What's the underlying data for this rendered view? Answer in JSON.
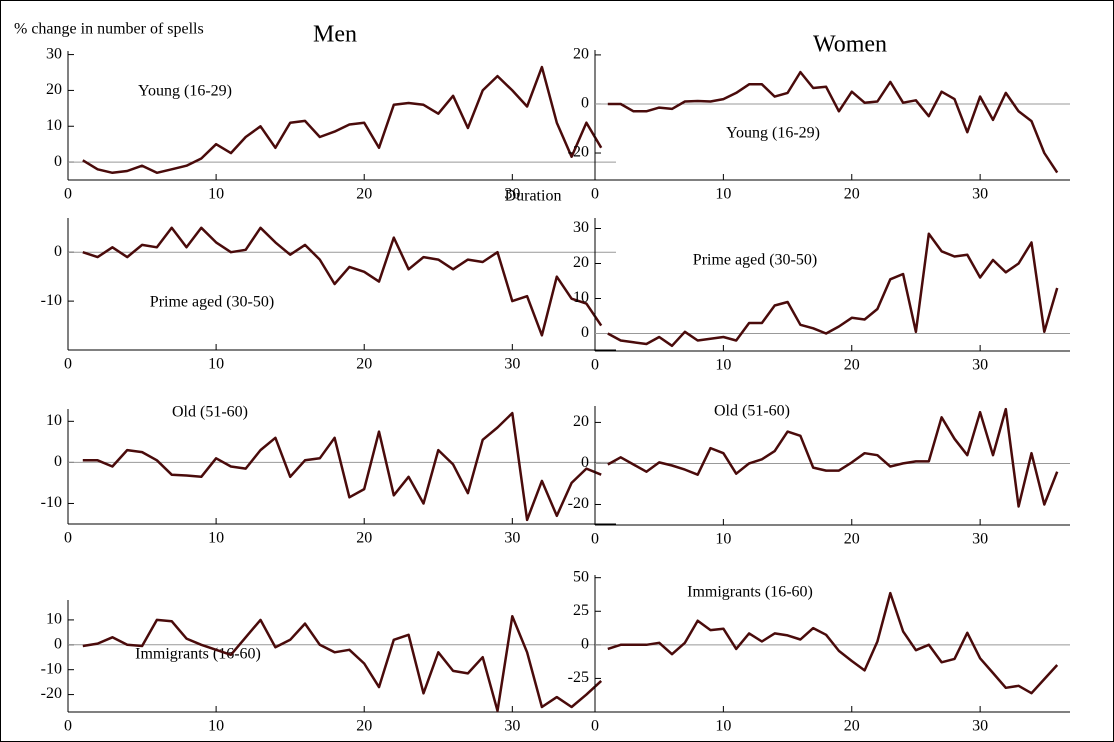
{
  "y_label": "% change in number of spells",
  "x_label": "Duration",
  "column_titles": [
    "Men",
    "Women"
  ],
  "chart_data": [
    {
      "type": "line",
      "annotation": "Young (16-29)",
      "color": "#4a0b0b",
      "zero_line": true,
      "x": [
        1,
        2,
        3,
        4,
        5,
        6,
        7,
        8,
        9,
        10,
        11,
        12,
        13,
        14,
        15,
        16,
        17,
        18,
        19,
        20,
        21,
        22,
        23,
        24,
        25,
        26,
        27,
        28,
        29,
        30,
        31,
        32,
        33,
        34,
        35,
        36
      ],
      "values": [
        0.5,
        -2,
        -3,
        -2.5,
        -1,
        -3,
        -2,
        -1,
        1,
        5,
        2.5,
        7,
        10,
        4,
        11,
        11.5,
        7,
        8.5,
        10.5,
        11,
        4,
        16,
        16.5,
        16,
        13.5,
        18.5,
        9.5,
        20,
        24,
        20,
        15.5,
        26.5,
        11,
        1.5,
        11,
        4
      ],
      "xlim": [
        0,
        37
      ],
      "xticks": [
        0,
        10,
        20,
        30
      ],
      "ylim": [
        -5,
        31
      ],
      "yticks": [
        0,
        10,
        20,
        30
      ]
    },
    {
      "type": "line",
      "annotation": "Prime aged (30-50)",
      "color": "#4a0b0b",
      "zero_line": true,
      "x": [
        1,
        2,
        3,
        4,
        5,
        6,
        7,
        8,
        9,
        10,
        11,
        12,
        13,
        14,
        15,
        16,
        17,
        18,
        19,
        20,
        21,
        22,
        23,
        24,
        25,
        26,
        27,
        28,
        29,
        30,
        31,
        32,
        33,
        34,
        35,
        36
      ],
      "values": [
        0,
        -1,
        1,
        -1,
        1.5,
        1,
        5,
        1,
        5,
        2,
        0,
        0.5,
        5,
        2,
        -0.5,
        1.5,
        -1.5,
        -6.5,
        -3,
        -4,
        -6,
        3,
        -3.5,
        -1,
        -1.5,
        -3.5,
        -1.5,
        -2,
        0,
        -10,
        -9,
        -17,
        -5,
        -9.5,
        -10.5,
        -15
      ],
      "xlim": [
        0,
        37
      ],
      "xticks": [
        0,
        10,
        20,
        30
      ],
      "ylim": [
        -20,
        7
      ],
      "yticks": [
        -10,
        0
      ]
    },
    {
      "type": "line",
      "annotation": "Old (51-60)",
      "color": "#4a0b0b",
      "zero_line": true,
      "x": [
        1,
        2,
        3,
        4,
        5,
        6,
        7,
        8,
        9,
        10,
        11,
        12,
        13,
        14,
        15,
        16,
        17,
        18,
        19,
        20,
        21,
        22,
        23,
        24,
        25,
        26,
        27,
        28,
        29,
        30,
        31,
        32,
        33,
        34,
        35,
        36
      ],
      "values": [
        0.5,
        0.5,
        -1,
        3,
        2.5,
        0.5,
        -3,
        -3.2,
        -3.5,
        1,
        -1,
        -1.5,
        3,
        6,
        -3.5,
        0.5,
        1,
        6,
        -8.5,
        -6.5,
        7.5,
        -8,
        -3.5,
        -10,
        3,
        -0.5,
        -7.5,
        5.5,
        8.5,
        12,
        -14,
        -4.5,
        -13,
        -5,
        -1.5,
        -3
      ],
      "xlim": [
        0,
        37
      ],
      "xticks": [
        0,
        10,
        20,
        30
      ],
      "ylim": [
        -15,
        13
      ],
      "yticks": [
        -10,
        0,
        10
      ]
    },
    {
      "type": "line",
      "annotation": "Immigrants (16-60)",
      "color": "#4a0b0b",
      "zero_line": true,
      "x": [
        1,
        2,
        3,
        4,
        5,
        6,
        7,
        8,
        9,
        10,
        11,
        12,
        13,
        14,
        15,
        16,
        17,
        18,
        19,
        20,
        21,
        22,
        23,
        24,
        25,
        26,
        27,
        28,
        29,
        30,
        31,
        32,
        33,
        34,
        35,
        36
      ],
      "values": [
        -0.5,
        0.5,
        3,
        0,
        -0.5,
        10,
        9.5,
        2.5,
        0,
        -2,
        -4,
        3,
        10,
        -1,
        2,
        8.5,
        0,
        -3,
        -2,
        -7.5,
        -17,
        2,
        4,
        -19.5,
        -3,
        -10.5,
        -11.5,
        -5,
        -26.5,
        11.5,
        -3,
        -25,
        -21,
        -25,
        -20,
        -14.5
      ],
      "xlim": [
        0,
        37
      ],
      "xticks": [
        0,
        10,
        20,
        30
      ],
      "ylim": [
        -27,
        18
      ],
      "yticks": [
        -20,
        -10,
        0,
        10
      ]
    },
    {
      "type": "line",
      "annotation": "Young (16-29)",
      "color": "#4a0b0b",
      "zero_line": true,
      "x": [
        1,
        2,
        3,
        4,
        5,
        6,
        7,
        8,
        9,
        10,
        11,
        12,
        13,
        14,
        15,
        16,
        17,
        18,
        19,
        20,
        21,
        22,
        23,
        24,
        25,
        26,
        27,
        28,
        29,
        30,
        31,
        32,
        33,
        34,
        35,
        36
      ],
      "values": [
        0,
        0,
        -3,
        -3,
        -1.5,
        -2,
        1,
        1.2,
        1,
        2,
        4.5,
        8,
        8,
        3,
        4.5,
        13,
        6.5,
        7,
        -3,
        5,
        0.5,
        1,
        9,
        0.5,
        1.5,
        -5,
        5,
        2,
        -11.5,
        3,
        -6.5,
        4.5,
        -3,
        -7,
        -20,
        -28
      ],
      "xlim": [
        0,
        37
      ],
      "xticks": [
        0,
        10,
        20,
        30
      ],
      "ylim": [
        -31,
        22
      ],
      "yticks": [
        -20,
        0,
        20
      ]
    },
    {
      "type": "line",
      "annotation": "Prime aged (30-50)",
      "color": "#4a0b0b",
      "zero_line": true,
      "x": [
        1,
        2,
        3,
        4,
        5,
        6,
        7,
        8,
        9,
        10,
        11,
        12,
        13,
        14,
        15,
        16,
        17,
        18,
        19,
        20,
        21,
        22,
        23,
        24,
        25,
        26,
        27,
        28,
        29,
        30,
        31,
        32,
        33,
        34,
        35,
        36
      ],
      "values": [
        0,
        -2,
        -2.5,
        -3,
        -1,
        -3.5,
        0.5,
        -2,
        -1.5,
        -1,
        -2,
        3,
        3,
        8,
        9,
        2.5,
        1.5,
        0,
        2,
        4.5,
        4,
        7,
        15.5,
        17,
        0.5,
        28.5,
        23.5,
        22,
        22.5,
        16,
        21,
        17.5,
        20,
        26,
        0.5,
        13
      ],
      "xlim": [
        0,
        37
      ],
      "xticks": [
        0,
        10,
        20,
        30
      ],
      "ylim": [
        -5,
        33
      ],
      "yticks": [
        0,
        10,
        20,
        30
      ]
    },
    {
      "type": "line",
      "annotation": "Old (51-60)",
      "color": "#4a0b0b",
      "zero_line": true,
      "x": [
        1,
        2,
        3,
        4,
        5,
        6,
        7,
        8,
        9,
        10,
        11,
        12,
        13,
        14,
        15,
        16,
        17,
        18,
        19,
        20,
        21,
        22,
        23,
        24,
        25,
        26,
        27,
        28,
        29,
        30,
        31,
        32,
        33,
        34,
        35,
        36
      ],
      "values": [
        -0.5,
        3,
        -0.5,
        -4,
        0.5,
        -1,
        -3,
        -5.5,
        7.5,
        5,
        -5,
        0,
        2,
        6,
        15.5,
        13.5,
        -2,
        -3.5,
        -3.5,
        0.5,
        5,
        4,
        -1.5,
        0,
        1,
        1,
        22.5,
        12,
        4,
        25,
        4,
        26.5,
        -21,
        5,
        -20,
        -4
      ],
      "xlim": [
        0,
        37
      ],
      "xticks": [
        0,
        10,
        20,
        30
      ],
      "ylim": [
        -30,
        28
      ],
      "yticks": [
        -20,
        0,
        20
      ]
    },
    {
      "type": "line",
      "annotation": "Immigrants (16-60)",
      "color": "#4a0b0b",
      "zero_line": true,
      "x": [
        1,
        2,
        3,
        4,
        5,
        6,
        7,
        8,
        9,
        10,
        11,
        12,
        13,
        14,
        15,
        16,
        17,
        18,
        19,
        20,
        21,
        22,
        23,
        24,
        25,
        26,
        27,
        28,
        29,
        30,
        31,
        32,
        33,
        34,
        35,
        36
      ],
      "values": [
        -3,
        0,
        0,
        0,
        1.5,
        -7,
        1.5,
        18,
        11,
        12,
        -3,
        8.5,
        2.5,
        8.5,
        7,
        4,
        12.5,
        7.5,
        -4.5,
        -12,
        -19,
        2.5,
        38.5,
        10,
        -4,
        0,
        -13,
        -10.5,
        9,
        -10,
        -21,
        -32,
        -30.5,
        -36,
        -25.5,
        -15
      ],
      "xlim": [
        0,
        37
      ],
      "xticks": [
        0,
        10,
        20,
        30
      ],
      "ylim": [
        -50,
        52
      ],
      "yticks": [
        -25,
        0,
        25,
        50
      ]
    }
  ]
}
